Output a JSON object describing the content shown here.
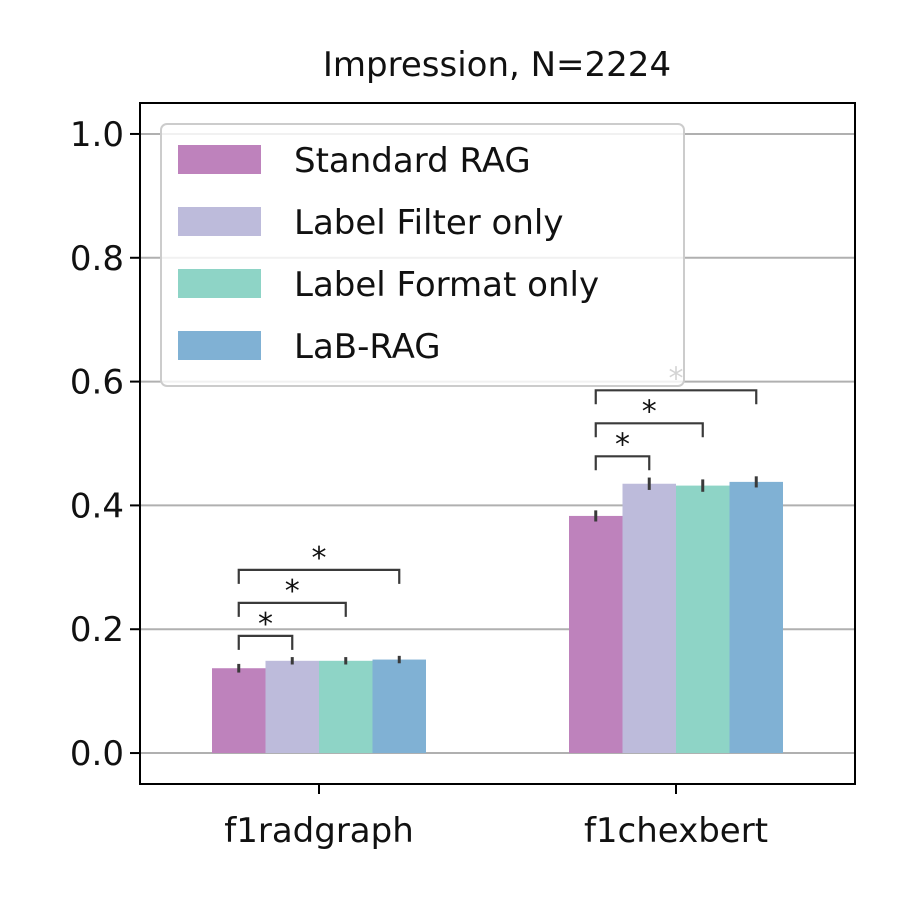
{
  "chart_data": {
    "type": "bar",
    "title": "Impression, N=2224",
    "xlabel": "",
    "ylabel": "",
    "categories": [
      "f1radgraph",
      "f1chexbert"
    ],
    "series": [
      {
        "name": "Standard RAG",
        "color": "#be82bc",
        "values": [
          0.137,
          0.383
        ],
        "errors": [
          0.007,
          0.009
        ]
      },
      {
        "name": "Label Filter only",
        "color": "#bdbbdb",
        "values": [
          0.149,
          0.435
        ],
        "errors": [
          0.006,
          0.01
        ]
      },
      {
        "name": "Label Format only",
        "color": "#8ed4c6",
        "values": [
          0.149,
          0.432
        ],
        "errors": [
          0.006,
          0.01
        ]
      },
      {
        "name": "LaB-RAG",
        "color": "#80b1d4",
        "values": [
          0.151,
          0.438
        ],
        "errors": [
          0.006,
          0.009
        ]
      }
    ],
    "ylim": [
      -0.05,
      1.05
    ],
    "yticks": [
      "0.0",
      "0.2",
      "0.4",
      "0.6",
      "0.8",
      "1.0"
    ],
    "ytick_values": [
      0.0,
      0.2,
      0.4,
      0.6,
      0.8,
      1.0
    ],
    "grid": "y",
    "legend_position": "top-left",
    "significance": [
      {
        "category": 0,
        "from_series": 0,
        "to_series": 1,
        "label": "*"
      },
      {
        "category": 0,
        "from_series": 0,
        "to_series": 2,
        "label": "*"
      },
      {
        "category": 0,
        "from_series": 0,
        "to_series": 3,
        "label": "*"
      },
      {
        "category": 1,
        "from_series": 0,
        "to_series": 1,
        "label": "*"
      },
      {
        "category": 1,
        "from_series": 0,
        "to_series": 2,
        "label": "*"
      },
      {
        "category": 1,
        "from_series": 0,
        "to_series": 3,
        "label": "*"
      }
    ]
  }
}
